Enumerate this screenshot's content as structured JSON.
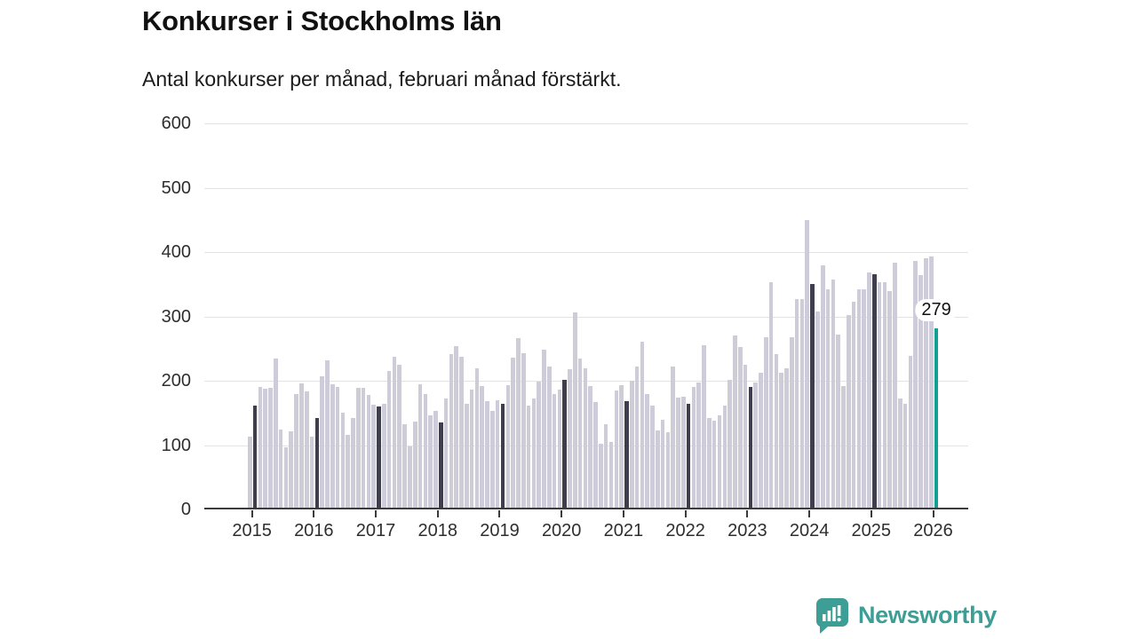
{
  "header": {
    "title": "Konkurser i Stockholms län",
    "subtitle": "Antal konkurser per månad, februari månad förstärkt."
  },
  "chart_data": {
    "type": "bar",
    "title": "Konkurser i Stockholms län",
    "subtitle": "Antal konkurser per månad, februari månad förstärkt.",
    "x_unit": "month",
    "x_start": "2015-01",
    "x_end": "2026-02",
    "x_tick_labels": [
      "2015",
      "2016",
      "2017",
      "2018",
      "2019",
      "2020",
      "2021",
      "2022",
      "2023",
      "2024",
      "2025",
      "2026"
    ],
    "ylim": [
      0,
      600
    ],
    "y_ticks": [
      0,
      100,
      200,
      300,
      400,
      500,
      600
    ],
    "grid": true,
    "legend": "none",
    "emphasis_note": "Every February bar is dark; the final bar (February 2026) is teal and labelled",
    "values_by_year": {
      "2015": [
        110,
        158,
        188,
        185,
        186,
        232,
        122,
        94,
        118,
        176,
        193,
        181
      ],
      "2016": [
        110,
        140,
        204,
        229,
        192,
        188,
        148,
        113,
        140,
        186,
        186,
        175
      ],
      "2017": [
        160,
        157,
        161,
        212,
        234,
        222,
        129,
        95,
        134,
        192,
        177,
        143
      ],
      "2018": [
        150,
        132,
        170,
        239,
        251,
        234,
        162,
        184,
        217,
        189,
        165,
        150
      ],
      "2019": [
        167,
        161,
        191,
        233,
        263,
        240,
        158,
        169,
        196,
        245,
        219,
        176
      ],
      "2020": [
        184,
        199,
        215,
        304,
        232,
        217,
        189,
        164,
        100,
        130,
        102,
        182
      ],
      "2021": [
        190,
        165,
        197,
        220,
        258,
        176,
        159,
        120,
        136,
        117,
        219,
        171
      ],
      "2022": [
        172,
        161,
        188,
        194,
        252,
        139,
        135,
        144,
        158,
        199,
        268,
        250
      ],
      "2023": [
        222,
        187,
        194,
        210,
        265,
        351,
        239,
        210,
        217,
        265,
        324,
        324
      ],
      "2024": [
        447,
        348,
        305,
        377,
        339,
        354,
        269,
        189,
        299,
        320,
        339,
        339
      ],
      "2025": [
        365,
        363,
        351,
        351,
        337,
        381,
        170,
        161,
        236,
        383,
        361,
        387
      ],
      "2026": [
        390,
        279
      ]
    },
    "annotation": {
      "label": "279",
      "x": "2026-02",
      "value": 279
    },
    "colors": {
      "bar_default": "#cfccd9",
      "bar_february": "#3e3e4c",
      "bar_highlight": "#11a092",
      "gridline": "#e3e3e6",
      "axis": "#3a3a3f"
    }
  },
  "footer": {
    "brand": "Newsworthy",
    "brand_color": "#3d9e96",
    "logo_icon": "bar-chart-speech-bubble-icon"
  }
}
